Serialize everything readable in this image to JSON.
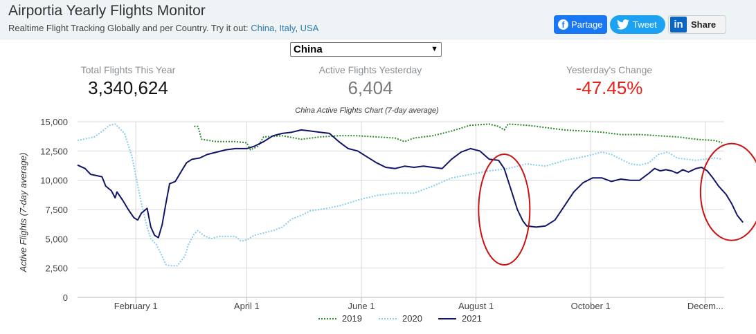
{
  "header": {
    "title": "Airportia Yearly Flights Monitor",
    "subtitle_prefix": "Realtime Flight Tracking Globally and per Country. Try it out:",
    "links": [
      "China",
      "Italy",
      "USA"
    ],
    "link_sep": ","
  },
  "share": {
    "facebook_label": "Partage",
    "twitter_label": "Tweet",
    "linkedin_label": "Share",
    "linkedin_logo": "in"
  },
  "country_select": {
    "selected": "China"
  },
  "stats": [
    {
      "label": "Total Flights This Year",
      "value": "3,340,624",
      "color": "#111111"
    },
    {
      "label": "Active Flights Yesterday",
      "value": "6,404",
      "color": "#7a7a7a"
    },
    {
      "label": "Yesterday's Change",
      "value": "-47.45%",
      "color": "#e8201a"
    }
  ],
  "colors": {
    "s2019": "#2a8a2a",
    "s2020": "#87cdee",
    "s2021": "#101466",
    "annotation": "#cc1111"
  },
  "chart_data": {
    "type": "line",
    "title": "China Active Flights Chart (7-day average)",
    "ylabel": "Active Flights (7-day average)",
    "xlabel": "",
    "ylim": [
      0,
      15000
    ],
    "yticks": [
      0,
      2500,
      5000,
      7500,
      10000,
      12500,
      15000
    ],
    "ytick_labels": [
      "0",
      "2,500",
      "5,000",
      "7,500",
      "10,000",
      "12,500",
      "15,000"
    ],
    "xlim_day_of_year": [
      1,
      345
    ],
    "xticks": [
      {
        "label": "February 1",
        "day": 32
      },
      {
        "label": "April 1",
        "day": 91
      },
      {
        "label": "June 1",
        "day": 152
      },
      {
        "label": "August 1",
        "day": 213
      },
      {
        "label": "October 1",
        "day": 274
      },
      {
        "label": "Decem...",
        "day": 335
      }
    ],
    "legend_position": "bottom",
    "annotations": [
      "red circle around early-August drop",
      "red circle around November drop"
    ],
    "series": [
      {
        "name": "2019",
        "style": "dotted",
        "points": [
          [
            63,
            14600
          ],
          [
            65,
            14600
          ],
          [
            67,
            13500
          ],
          [
            75,
            13300
          ],
          [
            85,
            13300
          ],
          [
            91,
            13200
          ],
          [
            93,
            12600
          ],
          [
            97,
            12900
          ],
          [
            100,
            13700
          ],
          [
            110,
            13800
          ],
          [
            120,
            13500
          ],
          [
            130,
            13700
          ],
          [
            140,
            13800
          ],
          [
            150,
            13800
          ],
          [
            160,
            13700
          ],
          [
            170,
            13600
          ],
          [
            175,
            13300
          ],
          [
            180,
            13600
          ],
          [
            190,
            13800
          ],
          [
            200,
            14200
          ],
          [
            210,
            14700
          ],
          [
            220,
            14800
          ],
          [
            225,
            14600
          ],
          [
            228,
            14300
          ],
          [
            230,
            14800
          ],
          [
            240,
            14700
          ],
          [
            250,
            14500
          ],
          [
            260,
            14300
          ],
          [
            270,
            14200
          ],
          [
            280,
            14100
          ],
          [
            290,
            13900
          ],
          [
            300,
            13900
          ],
          [
            310,
            13800
          ],
          [
            320,
            13700
          ],
          [
            330,
            13500
          ],
          [
            340,
            13400
          ],
          [
            344,
            13200
          ]
        ]
      },
      {
        "name": "2020",
        "style": "dotted",
        "points": [
          [
            1,
            13400
          ],
          [
            10,
            13700
          ],
          [
            15,
            14300
          ],
          [
            18,
            14700
          ],
          [
            21,
            14800
          ],
          [
            26,
            14000
          ],
          [
            30,
            12000
          ],
          [
            35,
            8000
          ],
          [
            38,
            6000
          ],
          [
            40,
            5000
          ],
          [
            43,
            4500
          ],
          [
            46,
            3500
          ],
          [
            48,
            2800
          ],
          [
            50,
            2700
          ],
          [
            54,
            2700
          ],
          [
            58,
            3500
          ],
          [
            60,
            4500
          ],
          [
            63,
            5400
          ],
          [
            65,
            5700
          ],
          [
            68,
            5300
          ],
          [
            72,
            5000
          ],
          [
            76,
            5200
          ],
          [
            80,
            5200
          ],
          [
            85,
            5200
          ],
          [
            88,
            4800
          ],
          [
            91,
            4900
          ],
          [
            95,
            5300
          ],
          [
            100,
            5500
          ],
          [
            105,
            5700
          ],
          [
            110,
            6000
          ],
          [
            115,
            6700
          ],
          [
            120,
            7000
          ],
          [
            125,
            7400
          ],
          [
            130,
            7500
          ],
          [
            140,
            7800
          ],
          [
            150,
            8300
          ],
          [
            160,
            8700
          ],
          [
            170,
            8900
          ],
          [
            180,
            8900
          ],
          [
            190,
            9500
          ],
          [
            200,
            10200
          ],
          [
            210,
            10500
          ],
          [
            220,
            10800
          ],
          [
            230,
            11000
          ],
          [
            240,
            11400
          ],
          [
            250,
            11200
          ],
          [
            260,
            11700
          ],
          [
            270,
            12000
          ],
          [
            280,
            12400
          ],
          [
            285,
            12200
          ],
          [
            290,
            11800
          ],
          [
            295,
            11400
          ],
          [
            300,
            11300
          ],
          [
            305,
            11500
          ],
          [
            310,
            12200
          ],
          [
            315,
            12400
          ],
          [
            320,
            11900
          ],
          [
            330,
            11700
          ],
          [
            340,
            11900
          ],
          [
            344,
            11800
          ]
        ]
      },
      {
        "name": "2021",
        "style": "solid",
        "points": [
          [
            1,
            11300
          ],
          [
            5,
            11000
          ],
          [
            8,
            10500
          ],
          [
            11,
            10400
          ],
          [
            14,
            10300
          ],
          [
            16,
            9500
          ],
          [
            19,
            9100
          ],
          [
            21,
            8500
          ],
          [
            22,
            9000
          ],
          [
            25,
            8300
          ],
          [
            28,
            7500
          ],
          [
            31,
            6800
          ],
          [
            33,
            6600
          ],
          [
            35,
            7200
          ],
          [
            38,
            7600
          ],
          [
            40,
            6000
          ],
          [
            42,
            5300
          ],
          [
            44,
            5100
          ],
          [
            46,
            6200
          ],
          [
            48,
            8000
          ],
          [
            50,
            9700
          ],
          [
            53,
            9900
          ],
          [
            56,
            10700
          ],
          [
            59,
            11500
          ],
          [
            62,
            11800
          ],
          [
            66,
            11900
          ],
          [
            70,
            12200
          ],
          [
            75,
            12400
          ],
          [
            80,
            12600
          ],
          [
            85,
            12700
          ],
          [
            91,
            12700
          ],
          [
            95,
            12900
          ],
          [
            100,
            13300
          ],
          [
            105,
            13800
          ],
          [
            110,
            14000
          ],
          [
            115,
            14100
          ],
          [
            120,
            14300
          ],
          [
            125,
            14200
          ],
          [
            130,
            14100
          ],
          [
            135,
            14000
          ],
          [
            140,
            13300
          ],
          [
            145,
            12700
          ],
          [
            150,
            12500
          ],
          [
            155,
            12000
          ],
          [
            160,
            11500
          ],
          [
            165,
            11100
          ],
          [
            170,
            11000
          ],
          [
            175,
            11200
          ],
          [
            180,
            11100
          ],
          [
            185,
            11200
          ],
          [
            190,
            11100
          ],
          [
            195,
            11000
          ],
          [
            200,
            11800
          ],
          [
            205,
            12400
          ],
          [
            210,
            12700
          ],
          [
            215,
            12500
          ],
          [
            220,
            11800
          ],
          [
            225,
            11700
          ],
          [
            228,
            11000
          ],
          [
            232,
            9000
          ],
          [
            235,
            7500
          ],
          [
            238,
            6500
          ],
          [
            240,
            6100
          ],
          [
            245,
            6000
          ],
          [
            250,
            6100
          ],
          [
            255,
            6600
          ],
          [
            260,
            7800
          ],
          [
            265,
            9000
          ],
          [
            270,
            9800
          ],
          [
            275,
            10200
          ],
          [
            280,
            10200
          ],
          [
            285,
            9900
          ],
          [
            290,
            10100
          ],
          [
            295,
            10000
          ],
          [
            300,
            10000
          ],
          [
            305,
            10600
          ],
          [
            308,
            11000
          ],
          [
            311,
            10800
          ],
          [
            314,
            10900
          ],
          [
            317,
            10800
          ],
          [
            320,
            10600
          ],
          [
            323,
            10900
          ],
          [
            326,
            10700
          ],
          [
            330,
            11000
          ],
          [
            333,
            11100
          ],
          [
            336,
            10800
          ],
          [
            339,
            10200
          ],
          [
            342,
            9500
          ],
          [
            346,
            8800
          ],
          [
            349,
            8000
          ],
          [
            352,
            7000
          ],
          [
            355,
            6400
          ]
        ]
      }
    ]
  }
}
